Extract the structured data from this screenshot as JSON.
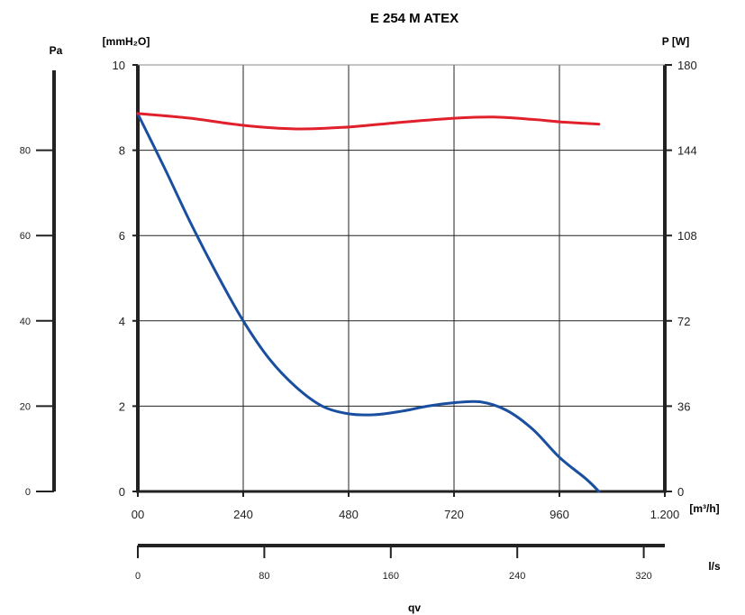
{
  "chart_data": {
    "type": "line",
    "title": "E 254 M ATEX",
    "xlabel": "qv",
    "x_axis_m3h": {
      "ticks": [
        "00",
        "240",
        "480",
        "720",
        "960",
        "1.200"
      ],
      "unit": "[m³/h]",
      "range": [
        0,
        1200
      ]
    },
    "x_axis_ls": {
      "ticks": [
        "0",
        "80",
        "160",
        "240",
        "320"
      ],
      "unit": "l/s",
      "range": [
        0,
        333.33
      ]
    },
    "y_left_mmh2o": {
      "unit": "[mmH₂O]",
      "ticks": [
        "0",
        "2",
        "4",
        "6",
        "8",
        "10"
      ],
      "range": [
        0,
        10
      ]
    },
    "y_left_pa": {
      "unit": "Pa",
      "ticks": [
        "0",
        "20",
        "40",
        "60",
        "80"
      ],
      "range": [
        0,
        100
      ]
    },
    "y_right_power": {
      "unit": "P [W]",
      "ticks": [
        "0",
        "36",
        "72",
        "108",
        "144",
        "180"
      ],
      "range": [
        0,
        180
      ]
    },
    "grid": true,
    "series": [
      {
        "color": "#1a4fa0",
        "axis": "mmH2O",
        "x": [
          0,
          60,
          120,
          180,
          240,
          300,
          360,
          420,
          480,
          540,
          600,
          660,
          720,
          780,
          840,
          900,
          960,
          1020,
          1050
        ],
        "y": [
          8.85,
          7.6,
          6.3,
          5.1,
          4.0,
          3.1,
          2.45,
          2.0,
          1.82,
          1.8,
          1.88,
          2.0,
          2.08,
          2.1,
          1.9,
          1.45,
          0.8,
          0.3,
          0.0
        ]
      },
      {
        "color": "#e0202a",
        "axis": "power",
        "x": [
          0,
          120,
          240,
          360,
          480,
          600,
          720,
          810,
          900,
          960,
          1050
        ],
        "y": [
          159.5,
          157.5,
          154.5,
          153.0,
          153.8,
          155.8,
          157.5,
          158.0,
          157.0,
          156.0,
          155.0
        ]
      }
    ]
  },
  "colors": {
    "grid": "#222222",
    "frame": "#222222",
    "blue": "#1a4fa0",
    "red": "#e0202a"
  }
}
